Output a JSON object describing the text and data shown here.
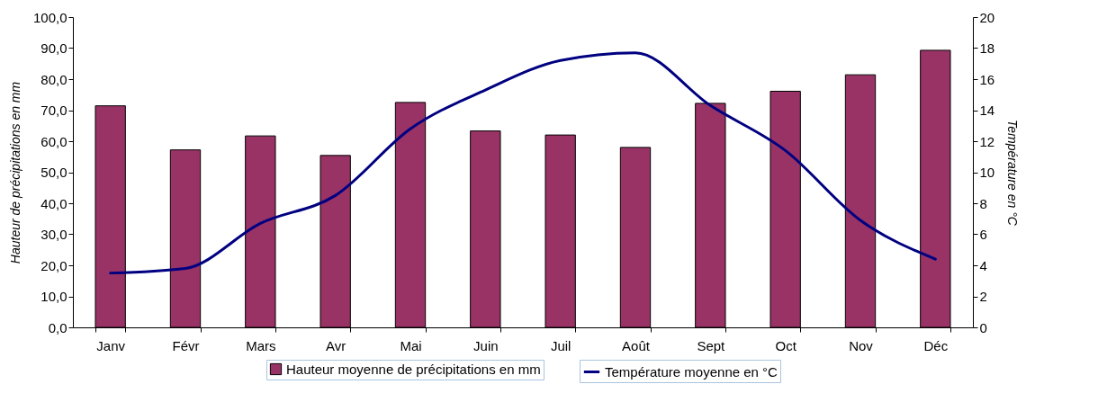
{
  "chart_data": {
    "type": "bar",
    "categories": [
      "Janv",
      "Févr",
      "Mars",
      "Avr",
      "Mai",
      "Juin",
      "Juil",
      "Août",
      "Sept",
      "Oct",
      "Nov",
      "Déc"
    ],
    "series": [
      {
        "name": "Hauteur moyenne de précipitations en mm",
        "color": "#993366",
        "values": [
          71.4,
          57.2,
          61.7,
          55.4,
          72.5,
          63.3,
          62.0,
          58.0,
          72.2,
          76.1,
          81.4,
          89.3
        ]
      },
      {
        "name": "Température moyenne en °C",
        "type": "line",
        "axis": "y2",
        "color": "#000080",
        "values": [
          3.5,
          3.8,
          6.7,
          8.5,
          12.8,
          15.3,
          17.2,
          17.7,
          14.3,
          11.4,
          6.9,
          4.4
        ]
      }
    ],
    "ylabel": "Hauteur de précipitations en mm",
    "y2label": "Température en °C",
    "ylim": [
      0,
      100
    ],
    "yticks": [
      {
        "value": 0,
        "label": "0,0"
      },
      {
        "value": 10,
        "label": "10,0"
      },
      {
        "value": 20,
        "label": "20,0"
      },
      {
        "value": 30,
        "label": "30,0"
      },
      {
        "value": 40,
        "label": "40,0"
      },
      {
        "value": 50,
        "label": "50,0"
      },
      {
        "value": 60,
        "label": "60,0"
      },
      {
        "value": 70,
        "label": "70,0"
      },
      {
        "value": 80,
        "label": "80,0"
      },
      {
        "value": 90,
        "label": "90,0"
      },
      {
        "value": 100,
        "label": "100,0"
      }
    ],
    "y2lim": [
      0,
      20
    ],
    "y2ticks": [
      0,
      2,
      4,
      6,
      8,
      10,
      12,
      14,
      16,
      18,
      20
    ],
    "grid": false,
    "legend": "bottom",
    "marker": "none",
    "line_style": "solid"
  }
}
